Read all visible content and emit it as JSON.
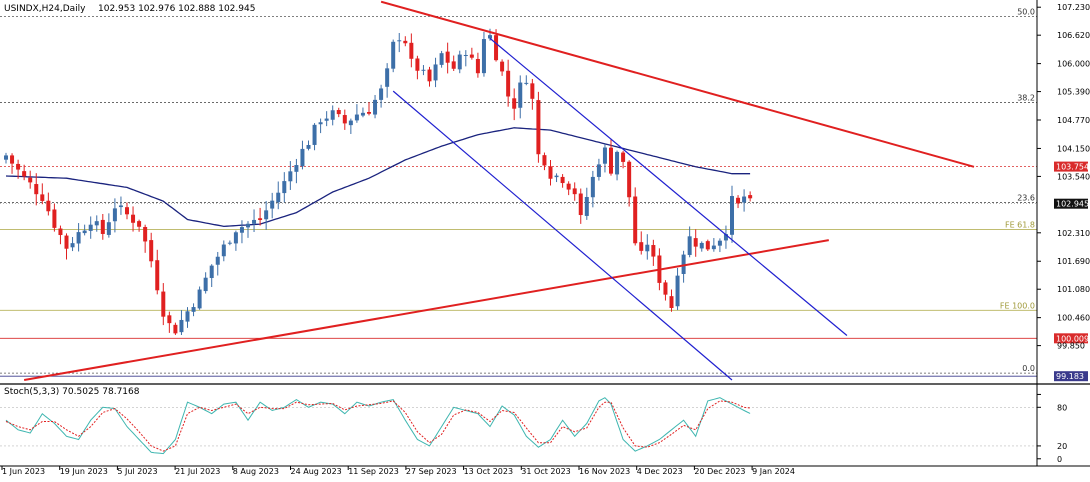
{
  "chart_data": {
    "type": "candlestick",
    "symbol_header": "USINDX,H24,Daily",
    "ohlc_header": "102.953 102.976 102.888 102.945",
    "price_axis_ticks": [
      107.23,
      106.62,
      106.0,
      105.39,
      104.77,
      104.15,
      103.54,
      102.31,
      101.69,
      101.08,
      100.46,
      99.85
    ],
    "price_axis_tick_labels": [
      "107.230",
      "106.620",
      "106.000",
      "105.390",
      "104.770",
      "104.150",
      "103.540",
      "102.310",
      "101.690",
      "101.080",
      "100.460",
      "99.850"
    ],
    "ylim": [
      99.1,
      107.3
    ],
    "current_price": {
      "label": "102.945",
      "value": 102.945
    },
    "horizontal_lines": [
      {
        "label": "50.0",
        "value": 107.03,
        "color": "#555555",
        "dashed": true,
        "tag": false
      },
      {
        "label": "38.2",
        "value": 105.15,
        "color": "#555555",
        "dashed": true,
        "tag": false
      },
      {
        "label": "23.6",
        "value": 102.97,
        "color": "#555555",
        "dashed": true,
        "tag": false
      },
      {
        "label": "0.0",
        "value": 99.25,
        "color": "#555555",
        "dashed": true,
        "tag": false
      },
      {
        "label": "FE 61.8",
        "value": 102.38,
        "color": "#b7b35c",
        "dashed": false,
        "tag": false
      },
      {
        "label": "FE 100.0",
        "value": 100.62,
        "color": "#b7b35c",
        "dashed": false,
        "tag": false
      },
      {
        "label": "103.754",
        "value": 103.754,
        "color": "#d92b2b",
        "dashed": true,
        "tag": true
      },
      {
        "label": "100.009",
        "value": 100.009,
        "color": "#d92b2b",
        "dashed": false,
        "tag": true
      },
      {
        "label": "99.183",
        "value": 99.183,
        "color": "#3a3a8c",
        "dashed": false,
        "tag": true
      }
    ],
    "x_axis_labels": [
      "1 Jun 2023",
      "19 Jun 2023",
      "5 Jul 2023",
      "21 Jul 2023",
      "8 Aug 2023",
      "24 Aug 2023",
      "11 Sep 2023",
      "27 Sep 2023",
      "13 Oct 2023",
      "31 Oct 2023",
      "16 Nov 2023",
      "4 Dec 2023",
      "20 Dec 2023",
      "9 Jan 2024"
    ],
    "close_path": [
      [
        0,
        104.0
      ],
      [
        3,
        103.5
      ],
      [
        6,
        103.1
      ],
      [
        8,
        102.5
      ],
      [
        10,
        102.0
      ],
      [
        12,
        102.3
      ],
      [
        14,
        102.6
      ],
      [
        16,
        102.3
      ],
      [
        18,
        102.9
      ],
      [
        20,
        102.7
      ],
      [
        22,
        102.5
      ],
      [
        24,
        101.7
      ],
      [
        26,
        100.6
      ],
      [
        27,
        100.3
      ],
      [
        28,
        100.2
      ],
      [
        30,
        100.6
      ],
      [
        32,
        101.0
      ],
      [
        34,
        101.6
      ],
      [
        36,
        102.0
      ],
      [
        38,
        102.4
      ],
      [
        40,
        102.5
      ],
      [
        42,
        102.6
      ],
      [
        44,
        103.0
      ],
      [
        46,
        103.4
      ],
      [
        48,
        103.9
      ],
      [
        50,
        104.3
      ],
      [
        52,
        104.8
      ],
      [
        54,
        104.9
      ],
      [
        56,
        104.7
      ],
      [
        58,
        104.9
      ],
      [
        60,
        105.0
      ],
      [
        62,
        105.4
      ],
      [
        63,
        105.8
      ],
      [
        64,
        106.4
      ],
      [
        65,
        106.6
      ],
      [
        66,
        106.5
      ],
      [
        67,
        106.0
      ],
      [
        68,
        105.9
      ],
      [
        70,
        105.6
      ],
      [
        72,
        106.2
      ],
      [
        74,
        105.9
      ],
      [
        76,
        106.3
      ],
      [
        78,
        105.8
      ],
      [
        79,
        106.6
      ],
      [
        80,
        106.6
      ],
      [
        81,
        106.2
      ],
      [
        82,
        105.8
      ],
      [
        83,
        105.3
      ],
      [
        84,
        105.1
      ],
      [
        85,
        105.5
      ],
      [
        86,
        105.7
      ],
      [
        87,
        105.2
      ],
      [
        88,
        104.0
      ],
      [
        89,
        103.9
      ],
      [
        90,
        103.6
      ],
      [
        92,
        103.5
      ],
      [
        94,
        103.2
      ],
      [
        95,
        102.6
      ],
      [
        96,
        103.1
      ],
      [
        97,
        103.5
      ],
      [
        98,
        103.9
      ],
      [
        99,
        104.1
      ],
      [
        100,
        103.7
      ],
      [
        101,
        104.1
      ],
      [
        102,
        103.8
      ],
      [
        103,
        103.1
      ],
      [
        104,
        102.1
      ],
      [
        105,
        101.8
      ],
      [
        106,
        102.1
      ],
      [
        107,
        101.7
      ],
      [
        108,
        101.3
      ],
      [
        109,
        101.0
      ],
      [
        110,
        100.7
      ],
      [
        111,
        101.5
      ],
      [
        112,
        101.9
      ],
      [
        113,
        102.2
      ],
      [
        114,
        102.1
      ],
      [
        116,
        102.0
      ],
      [
        118,
        102.2
      ],
      [
        119,
        102.4
      ],
      [
        120,
        103.0
      ],
      [
        121,
        102.9
      ],
      [
        122,
        103.1
      ],
      [
        123,
        102.945
      ]
    ],
    "moving_average": [
      [
        0,
        103.55
      ],
      [
        10,
        103.5
      ],
      [
        20,
        103.3
      ],
      [
        26,
        103.0
      ],
      [
        30,
        102.6
      ],
      [
        36,
        102.45
      ],
      [
        42,
        102.5
      ],
      [
        48,
        102.75
      ],
      [
        54,
        103.2
      ],
      [
        60,
        103.5
      ],
      [
        66,
        103.9
      ],
      [
        72,
        104.2
      ],
      [
        78,
        104.45
      ],
      [
        84,
        104.6
      ],
      [
        90,
        104.55
      ],
      [
        96,
        104.35
      ],
      [
        102,
        104.15
      ],
      [
        108,
        103.95
      ],
      [
        114,
        103.75
      ],
      [
        120,
        103.6
      ],
      [
        123,
        103.6
      ]
    ],
    "trendlines": [
      {
        "color": "#e02020",
        "width": 2,
        "points": [
          [
            62,
            107.35
          ],
          [
            160,
            103.75
          ]
        ]
      },
      {
        "color": "#e02020",
        "width": 2,
        "points": [
          [
            3,
            99.1
          ],
          [
            136,
            102.15
          ]
        ]
      },
      {
        "color": "#2020d0",
        "width": 1.2,
        "points": [
          [
            80,
            106.55
          ],
          [
            139,
            100.07
          ]
        ]
      },
      {
        "color": "#2020d0",
        "width": 1.2,
        "points": [
          [
            64,
            105.4
          ],
          [
            120,
            99.1
          ]
        ]
      }
    ],
    "stochastic": {
      "label": "Stoch(5,3,3) 70.5025 78.7168",
      "levels_shown": [
        "80",
        "20",
        "0"
      ],
      "tick_values": [
        100,
        80,
        20,
        0
      ],
      "ylim": [
        -5,
        110
      ],
      "main": [
        [
          0,
          60
        ],
        [
          2,
          45
        ],
        [
          4,
          40
        ],
        [
          6,
          70
        ],
        [
          8,
          55
        ],
        [
          10,
          35
        ],
        [
          12,
          30
        ],
        [
          14,
          60
        ],
        [
          16,
          80
        ],
        [
          18,
          78
        ],
        [
          20,
          50
        ],
        [
          22,
          30
        ],
        [
          24,
          10
        ],
        [
          26,
          8
        ],
        [
          28,
          30
        ],
        [
          30,
          88
        ],
        [
          32,
          80
        ],
        [
          34,
          70
        ],
        [
          36,
          85
        ],
        [
          38,
          88
        ],
        [
          40,
          60
        ],
        [
          42,
          88
        ],
        [
          44,
          75
        ],
        [
          46,
          80
        ],
        [
          48,
          92
        ],
        [
          50,
          80
        ],
        [
          52,
          88
        ],
        [
          54,
          85
        ],
        [
          56,
          70
        ],
        [
          58,
          88
        ],
        [
          60,
          82
        ],
        [
          62,
          88
        ],
        [
          64,
          92
        ],
        [
          66,
          60
        ],
        [
          68,
          30
        ],
        [
          70,
          20
        ],
        [
          72,
          50
        ],
        [
          74,
          80
        ],
        [
          76,
          75
        ],
        [
          78,
          70
        ],
        [
          80,
          50
        ],
        [
          82,
          82
        ],
        [
          84,
          68
        ],
        [
          86,
          35
        ],
        [
          88,
          18
        ],
        [
          90,
          30
        ],
        [
          92,
          60
        ],
        [
          94,
          35
        ],
        [
          96,
          55
        ],
        [
          98,
          90
        ],
        [
          99,
          95
        ],
        [
          100,
          85
        ],
        [
          102,
          30
        ],
        [
          104,
          12
        ],
        [
          106,
          20
        ],
        [
          108,
          30
        ],
        [
          110,
          45
        ],
        [
          112,
          60
        ],
        [
          114,
          35
        ],
        [
          116,
          90
        ],
        [
          118,
          95
        ],
        [
          120,
          85
        ],
        [
          122,
          75
        ],
        [
          123,
          70.5
        ]
      ],
      "signal": [
        [
          0,
          58
        ],
        [
          2,
          50
        ],
        [
          4,
          45
        ],
        [
          6,
          58
        ],
        [
          8,
          58
        ],
        [
          10,
          45
        ],
        [
          12,
          35
        ],
        [
          14,
          50
        ],
        [
          16,
          72
        ],
        [
          18,
          78
        ],
        [
          20,
          62
        ],
        [
          22,
          42
        ],
        [
          24,
          20
        ],
        [
          26,
          12
        ],
        [
          28,
          20
        ],
        [
          30,
          70
        ],
        [
          32,
          80
        ],
        [
          34,
          75
        ],
        [
          36,
          80
        ],
        [
          38,
          85
        ],
        [
          40,
          70
        ],
        [
          42,
          80
        ],
        [
          44,
          78
        ],
        [
          46,
          78
        ],
        [
          48,
          88
        ],
        [
          50,
          84
        ],
        [
          52,
          85
        ],
        [
          54,
          86
        ],
        [
          56,
          76
        ],
        [
          58,
          82
        ],
        [
          60,
          84
        ],
        [
          62,
          86
        ],
        [
          64,
          90
        ],
        [
          66,
          72
        ],
        [
          68,
          42
        ],
        [
          70,
          25
        ],
        [
          72,
          38
        ],
        [
          74,
          68
        ],
        [
          76,
          76
        ],
        [
          78,
          72
        ],
        [
          80,
          58
        ],
        [
          82,
          75
        ],
        [
          84,
          72
        ],
        [
          86,
          48
        ],
        [
          88,
          25
        ],
        [
          90,
          25
        ],
        [
          92,
          50
        ],
        [
          94,
          42
        ],
        [
          96,
          48
        ],
        [
          98,
          80
        ],
        [
          99,
          88
        ],
        [
          100,
          88
        ],
        [
          102,
          48
        ],
        [
          104,
          20
        ],
        [
          106,
          18
        ],
        [
          108,
          25
        ],
        [
          110,
          38
        ],
        [
          112,
          52
        ],
        [
          114,
          45
        ],
        [
          116,
          78
        ],
        [
          118,
          90
        ],
        [
          120,
          88
        ],
        [
          122,
          80
        ],
        [
          123,
          78.7
        ]
      ]
    }
  },
  "colors": {
    "bull": "#3d6fa8",
    "bear": "#e02020",
    "moving_average": "#1a237e",
    "stoch_main": "#3fb6b0",
    "stoch_signal": "#e02020"
  }
}
